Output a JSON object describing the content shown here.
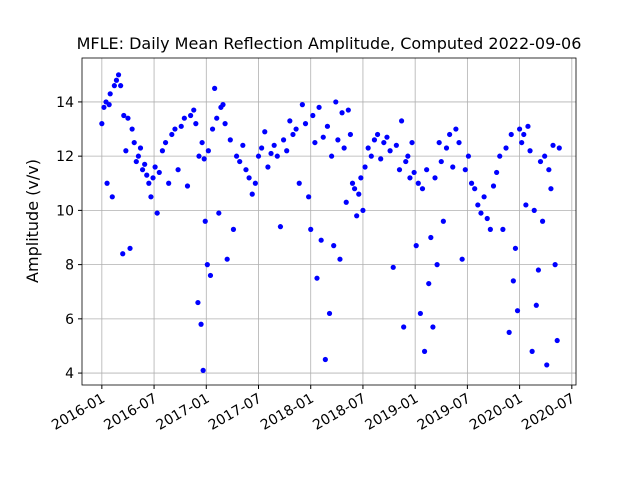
{
  "chart_data": {
    "type": "scatter",
    "title": "MFLE: Daily Mean Reflection Amplitude, Computed 2022-09-06",
    "y_label": "Amplitude (v/v)",
    "color": "#0000ff",
    "grid": true,
    "xlim": [
      2015.81,
      2020.54
    ],
    "ylim": [
      3.56,
      15.62
    ],
    "xticks": [
      {
        "value": 2016.0,
        "label": "2016-01"
      },
      {
        "value": 2016.5,
        "label": "2016-07"
      },
      {
        "value": 2017.0,
        "label": "2017-01"
      },
      {
        "value": 2017.5,
        "label": "2017-07"
      },
      {
        "value": 2018.0,
        "label": "2018-01"
      },
      {
        "value": 2018.5,
        "label": "2018-07"
      },
      {
        "value": 2019.0,
        "label": "2019-01"
      },
      {
        "value": 2019.5,
        "label": "2019-07"
      },
      {
        "value": 2020.0,
        "label": "2020-01"
      },
      {
        "value": 2020.5,
        "label": "2020-07"
      }
    ],
    "yticks": [
      4,
      6,
      8,
      10,
      12,
      14
    ],
    "x": [
      2016.0,
      2016.02,
      2016.04,
      2016.05,
      2016.07,
      2016.08,
      2016.1,
      2016.12,
      2016.14,
      2016.16,
      2016.18,
      2016.2,
      2016.21,
      2016.23,
      2016.25,
      2016.27,
      2016.29,
      2016.31,
      2016.33,
      2016.35,
      2016.37,
      2016.39,
      2016.41,
      2016.43,
      2016.45,
      2016.47,
      2016.49,
      2016.51,
      2016.53,
      2016.55,
      2016.58,
      2016.61,
      2016.64,
      2016.67,
      2016.7,
      2016.73,
      2016.76,
      2016.79,
      2016.82,
      2016.85,
      2016.88,
      2016.9,
      2016.92,
      2016.93,
      2016.95,
      2016.96,
      2016.97,
      2016.98,
      2016.99,
      2017.01,
      2017.02,
      2017.04,
      2017.06,
      2017.08,
      2017.1,
      2017.12,
      2017.14,
      2017.16,
      2017.18,
      2017.2,
      2017.23,
      2017.26,
      2017.29,
      2017.32,
      2017.35,
      2017.38,
      2017.41,
      2017.44,
      2017.47,
      2017.5,
      2017.53,
      2017.56,
      2017.59,
      2017.62,
      2017.65,
      2017.68,
      2017.71,
      2017.74,
      2017.77,
      2017.8,
      2017.83,
      2017.86,
      2017.89,
      2017.92,
      2017.95,
      2017.98,
      2018.0,
      2018.02,
      2018.04,
      2018.06,
      2018.08,
      2018.1,
      2018.12,
      2018.14,
      2018.16,
      2018.18,
      2018.2,
      2018.22,
      2018.24,
      2018.26,
      2018.28,
      2018.3,
      2018.32,
      2018.34,
      2018.36,
      2018.38,
      2018.4,
      2018.42,
      2018.44,
      2018.46,
      2018.48,
      2018.5,
      2018.52,
      2018.55,
      2018.58,
      2018.61,
      2018.64,
      2018.67,
      2018.7,
      2018.73,
      2018.76,
      2018.79,
      2018.82,
      2018.85,
      2018.87,
      2018.89,
      2018.91,
      2018.93,
      2018.95,
      2018.97,
      2018.99,
      2019.01,
      2019.03,
      2019.05,
      2019.07,
      2019.09,
      2019.11,
      2019.13,
      2019.15,
      2019.17,
      2019.19,
      2019.21,
      2019.23,
      2019.25,
      2019.27,
      2019.3,
      2019.33,
      2019.36,
      2019.39,
      2019.42,
      2019.45,
      2019.48,
      2019.51,
      2019.54,
      2019.57,
      2019.6,
      2019.63,
      2019.66,
      2019.69,
      2019.72,
      2019.75,
      2019.78,
      2019.81,
      2019.84,
      2019.87,
      2019.9,
      2019.92,
      2019.94,
      2019.96,
      2019.98,
      2020.0,
      2020.02,
      2020.04,
      2020.06,
      2020.08,
      2020.1,
      2020.12,
      2020.14,
      2020.16,
      2020.18,
      2020.2,
      2020.22,
      2020.24,
      2020.26,
      2020.28,
      2020.3,
      2020.32,
      2020.34,
      2020.36,
      2020.38
    ],
    "values": [
      13.2,
      13.8,
      14.0,
      11.0,
      13.9,
      14.3,
      10.5,
      14.6,
      14.8,
      15.0,
      14.6,
      8.4,
      13.5,
      12.2,
      13.4,
      8.6,
      13.0,
      12.5,
      11.8,
      12.0,
      12.3,
      11.5,
      11.7,
      11.3,
      11.0,
      10.5,
      11.2,
      11.6,
      9.9,
      11.4,
      12.2,
      12.5,
      11.0,
      12.8,
      13.0,
      11.5,
      13.1,
      13.4,
      10.9,
      13.5,
      13.7,
      13.2,
      6.6,
      12.0,
      5.8,
      12.5,
      4.1,
      11.9,
      9.6,
      8.0,
      12.2,
      7.6,
      13.0,
      14.5,
      13.4,
      9.9,
      13.8,
      13.9,
      13.2,
      8.2,
      12.6,
      9.3,
      12.0,
      11.8,
      12.4,
      11.5,
      11.2,
      10.6,
      11.0,
      12.0,
      12.3,
      12.9,
      11.6,
      12.1,
      12.4,
      12.0,
      9.4,
      12.6,
      12.2,
      13.3,
      12.8,
      13.0,
      11.0,
      13.9,
      13.2,
      10.5,
      9.3,
      13.5,
      12.5,
      7.5,
      13.8,
      8.9,
      12.7,
      4.5,
      13.1,
      6.2,
      12.0,
      8.7,
      14.0,
      12.6,
      8.2,
      13.6,
      12.3,
      10.3,
      13.7,
      12.8,
      11.0,
      10.8,
      9.8,
      10.6,
      11.2,
      10.0,
      11.6,
      12.3,
      12.0,
      12.6,
      12.8,
      11.9,
      12.5,
      12.7,
      12.2,
      7.9,
      12.4,
      11.5,
      13.3,
      5.7,
      11.8,
      12.0,
      11.2,
      12.5,
      11.4,
      8.7,
      11.0,
      6.2,
      10.8,
      4.8,
      11.5,
      7.3,
      9.0,
      5.7,
      11.2,
      8.0,
      12.5,
      11.8,
      9.6,
      12.3,
      12.8,
      11.6,
      13.0,
      12.5,
      8.2,
      11.5,
      12.0,
      11.0,
      10.8,
      10.2,
      9.9,
      10.5,
      9.7,
      9.3,
      10.9,
      11.4,
      12.0,
      9.3,
      12.3,
      5.5,
      12.8,
      7.4,
      8.6,
      6.3,
      13.0,
      12.5,
      12.8,
      10.2,
      13.1,
      12.2,
      4.8,
      10.0,
      6.5,
      7.8,
      11.8,
      9.6,
      12.0,
      4.3,
      11.5,
      10.8,
      12.4,
      8.0,
      5.2,
      12.3
    ]
  }
}
